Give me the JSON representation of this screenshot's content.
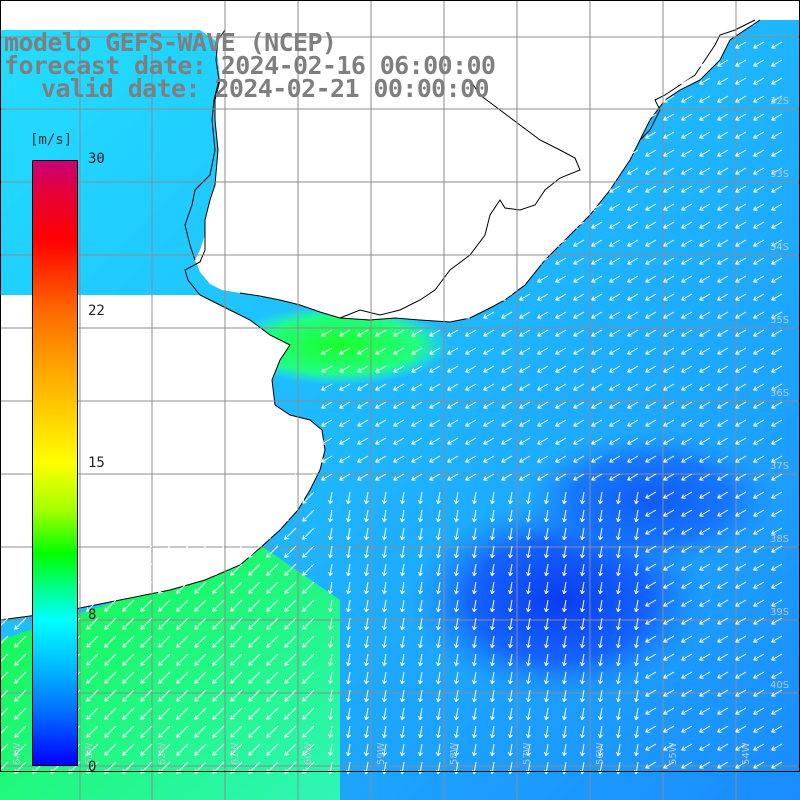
{
  "header": {
    "line1": "modelo GEFS-WAVE (NCEP)",
    "line2": "forecast date: 2024-02-16 06:00:00",
    "line3": "valid date: 2024-02-21 00:00:00"
  },
  "colorbar": {
    "unit": "[m/s]",
    "ticks": [
      "30",
      "22",
      "15",
      "8",
      "0"
    ],
    "tick_values": [
      30,
      22,
      15,
      8,
      0
    ],
    "min": 0,
    "max": 30
  },
  "lat_labels": [
    "32S",
    "33S",
    "34S",
    "35S",
    "36S",
    "37S",
    "38S",
    "39S",
    "40S"
  ],
  "lon_labels": [
    "64W",
    "63W",
    "62W",
    "61W",
    "60W",
    "59W",
    "58W",
    "57W",
    "56W",
    "55W",
    "54W"
  ],
  "colors": {
    "land": "#ffffff",
    "coast": "#000000",
    "grid": "#8c8c8c",
    "arrows": "#ffffff",
    "title": "#7f7f7f"
  }
}
